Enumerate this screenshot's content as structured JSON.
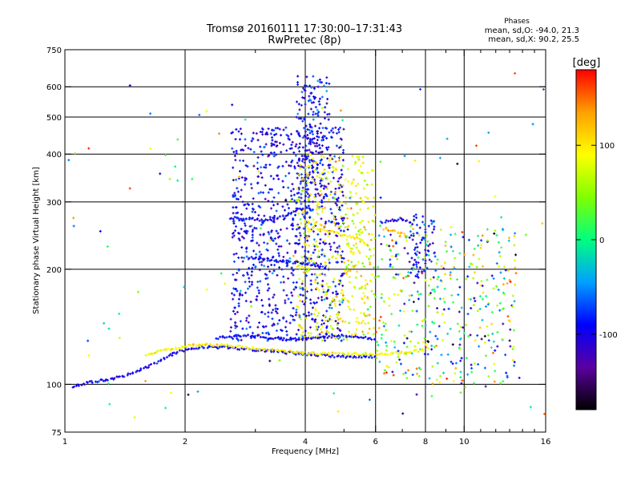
{
  "chart_data": {
    "type": "scatter",
    "title": "Tromsø 20160111 17:30:00–17:31:43",
    "subtitle": "RwPretec (8p)",
    "xlabel": "Frequency [MHz]",
    "ylabel": "Stationary phase Virtual Height [km]",
    "x_scale": "log",
    "y_scale": "log",
    "xlim": [
      1,
      16
    ],
    "ylim": [
      75,
      750
    ],
    "x_ticks": [
      1,
      2,
      4,
      6,
      8,
      10,
      16
    ],
    "x_tick_labels": [
      "1",
      "2",
      "4",
      "6",
      "8",
      "10",
      "16"
    ],
    "x_minor_ticks": [
      3,
      5,
      7,
      9,
      11,
      12,
      13,
      14,
      15
    ],
    "x_grid": [
      2,
      4,
      6,
      8,
      10
    ],
    "y_ticks": [
      75,
      100,
      200,
      300,
      400,
      500,
      600,
      750
    ],
    "y_tick_labels": [
      "75",
      "100",
      "200",
      "300",
      "400",
      "500",
      "600",
      "750"
    ],
    "y_grid": [
      100,
      200,
      300,
      400,
      500,
      600
    ],
    "grid": true,
    "stats": {
      "heading": "Phases",
      "o_line": "mean, sd,O: -94.0, 21.3",
      "x_line": "mean, sd,X: 90.2, 25.5"
    },
    "colorbar": {
      "label": "[deg]",
      "range": [
        -180,
        180
      ],
      "ticks": [
        100,
        0,
        -100
      ],
      "tick_labels": [
        "100",
        "0",
        "-100"
      ],
      "colormap": [
        "#000000",
        "#5a00a0",
        "#0000ff",
        "#00a0ff",
        "#00ff80",
        "#80ff00",
        "#ffff00",
        "#ffa000",
        "#ff0000"
      ]
    },
    "traces": [
      {
        "name": "",
        "kind": "trace",
        "phase": -95,
        "points": [
          [
            1.05,
            98
          ],
          [
            1.1,
            100
          ],
          [
            1.2,
            102
          ],
          [
            1.3,
            103
          ],
          [
            1.4,
            105
          ],
          [
            1.5,
            108
          ],
          [
            1.6,
            111
          ],
          [
            1.7,
            114
          ],
          [
            1.8,
            118
          ],
          [
            1.9,
            121
          ],
          [
            2.0,
            123
          ],
          [
            2.2,
            125
          ],
          [
            2.5,
            125
          ],
          [
            2.8,
            124
          ],
          [
            3.0,
            123
          ],
          [
            3.3,
            122
          ],
          [
            3.6,
            121
          ],
          [
            4.0,
            120
          ],
          [
            4.5,
            119
          ],
          [
            5.0,
            118
          ],
          [
            5.5,
            118
          ],
          [
            6.0,
            118
          ]
        ]
      },
      {
        "name": "",
        "kind": "trace",
        "phase": 95,
        "points": [
          [
            1.6,
            120
          ],
          [
            1.8,
            123
          ],
          [
            2.0,
            126
          ],
          [
            2.3,
            127
          ],
          [
            2.6,
            126
          ],
          [
            3.0,
            124
          ],
          [
            3.5,
            122
          ],
          [
            4.0,
            121
          ],
          [
            5.0,
            120
          ],
          [
            6.0,
            120
          ],
          [
            7.0,
            121
          ],
          [
            8.0,
            123
          ]
        ]
      },
      {
        "name": "",
        "kind": "trace",
        "phase": -95,
        "points": [
          [
            2.4,
            132
          ],
          [
            2.7,
            134
          ],
          [
            3.0,
            134
          ],
          [
            3.3,
            132
          ],
          [
            3.6,
            131
          ],
          [
            4.0,
            132
          ],
          [
            4.5,
            133
          ],
          [
            5.0,
            134
          ],
          [
            5.5,
            133
          ],
          [
            6.0,
            131
          ]
        ]
      },
      {
        "name": "",
        "kind": "trace",
        "phase": -90,
        "points": [
          [
            2.6,
            270
          ],
          [
            2.8,
            272
          ],
          [
            3.0,
            270
          ],
          [
            3.2,
            268
          ],
          [
            3.5,
            275
          ],
          [
            3.8,
            285
          ],
          [
            4.0,
            290
          ],
          [
            4.2,
            285
          ]
        ]
      },
      {
        "name": "",
        "kind": "trace",
        "phase": -95,
        "points": [
          [
            2.9,
            215
          ],
          [
            3.2,
            212
          ],
          [
            3.5,
            210
          ],
          [
            3.8,
            208
          ],
          [
            4.2,
            205
          ],
          [
            4.6,
            200
          ]
        ]
      },
      {
        "name": "",
        "kind": "trace",
        "phase": 100,
        "points": [
          [
            4.3,
            255
          ],
          [
            4.7,
            250
          ],
          [
            5.0,
            245
          ],
          [
            5.5,
            240
          ],
          [
            5.8,
            230
          ]
        ]
      },
      {
        "name": "",
        "kind": "trace",
        "phase": -100,
        "points": [
          [
            6.2,
            265
          ],
          [
            6.6,
            268
          ],
          [
            7.0,
            270
          ],
          [
            7.3,
            266
          ],
          [
            7.5,
            262
          ]
        ]
      },
      {
        "name": "",
        "kind": "trace",
        "phase": 110,
        "points": [
          [
            6.3,
            255
          ],
          [
            6.8,
            250
          ],
          [
            7.2,
            245
          ]
        ]
      }
    ],
    "clouds": [
      {
        "name": "",
        "kind": "cloud",
        "phase_mean": -95,
        "phase_sd": 22,
        "count": 900,
        "x_range": [
          2.6,
          5.0
        ],
        "y_range": [
          130,
          470
        ],
        "seed": 11
      },
      {
        "name": "",
        "kind": "cloud",
        "phase_mean": -92,
        "phase_sd": 22,
        "count": 180,
        "x_range": [
          3.8,
          4.6
        ],
        "y_range": [
          300,
          640
        ],
        "seed": 23
      },
      {
        "name": "",
        "kind": "cloud",
        "phase_mean": 90,
        "phase_sd": 25,
        "count": 450,
        "x_range": [
          3.8,
          6.0
        ],
        "y_range": [
          130,
          400
        ],
        "seed": 37
      },
      {
        "name": "",
        "kind": "cloud",
        "phase_mean": 20,
        "phase_sd": 90,
        "count": 400,
        "x_range": [
          6.0,
          13.5
        ],
        "y_range": [
          100,
          260
        ],
        "seed": 41
      },
      {
        "name": "",
        "kind": "cloud",
        "phase_mean": 0,
        "phase_sd": 110,
        "count": 120,
        "x_range": [
          1.0,
          16.0
        ],
        "y_range": [
          78,
          680
        ],
        "seed": 53
      },
      {
        "name": "",
        "kind": "cloud",
        "phase_mean": -95,
        "phase_sd": 22,
        "count": 70,
        "x_range": [
          7.3,
          8.5
        ],
        "y_range": [
          190,
          280
        ],
        "seed": 67
      }
    ]
  }
}
